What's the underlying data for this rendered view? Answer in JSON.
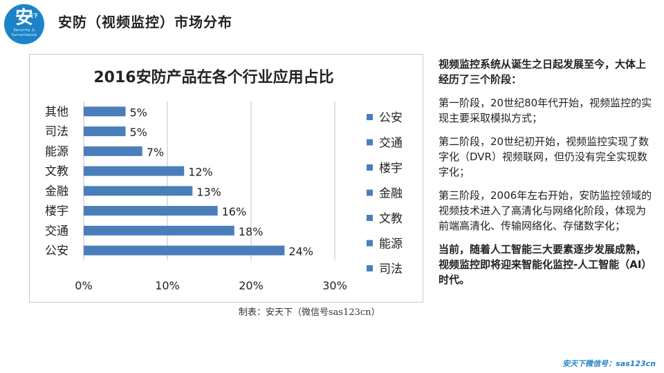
{
  "header": {
    "logo_main": "安",
    "logo_badge": "天下",
    "logo_sub": "Security & Surveillance",
    "title": "安防（视频监控）市场分布"
  },
  "colors": {
    "bar": "#4a7ebb",
    "brand": "#1d83c8",
    "grid": "#c0c0c0"
  },
  "chart_data": {
    "type": "bar",
    "orientation": "horizontal",
    "title": "2016安防产品在各个行业应用占比",
    "categories": [
      "公安",
      "交通",
      "楼宇",
      "金融",
      "文教",
      "能源",
      "司法",
      "其他"
    ],
    "values": [
      24,
      18,
      16,
      13,
      12,
      7,
      5,
      5
    ],
    "value_labels": [
      "24%",
      "18%",
      "16%",
      "13%",
      "12%",
      "7%",
      "5%",
      "5%"
    ],
    "xlim": [
      0,
      30
    ],
    "xticks": [
      0,
      10,
      20,
      30
    ],
    "xtick_labels": [
      "0%",
      "10%",
      "20%",
      "30%"
    ],
    "grid": true,
    "legend": {
      "position": "right",
      "entries": [
        "公安",
        "交通",
        "楼宇",
        "金融",
        "文教",
        "能源",
        "司法"
      ]
    }
  },
  "caption": "制表：安天下（微信号sas123cn）",
  "text": {
    "intro": "视频监控系统从诞生之日起发展至今，大体上经历了三个阶段：",
    "stage1": "第一阶段，20世纪80年代开始，视频监控的实现主要采取模拟方式；",
    "stage2": " 第二阶段，20世纪初开始，视频监控实现了数字化（DVR）视频联网，但仍没有完全实现数字化；",
    "stage3": "第三阶段，2006年左右开始，安防监控领域的视频技术进入了高清化与网络化阶段，体现为前端高清化、传输网络化、存储数字化；",
    "conclusion": "当前，随着人工智能三大要素逐步发展成熟，视频监控即将迎来智能化监控-人工智能（AI）时代。"
  },
  "footer": "安天下微信号：sas123cn"
}
